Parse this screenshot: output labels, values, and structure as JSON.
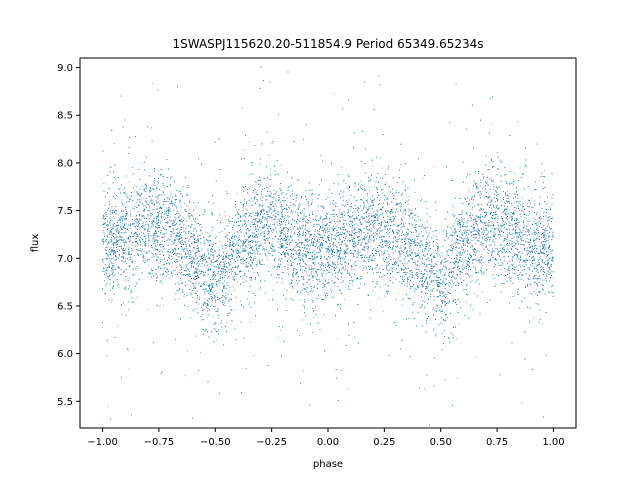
{
  "chart_data": {
    "type": "scatter",
    "title": "1SWASPJ115620.20-511854.9 Period 65349.65234s",
    "xlabel": "phase",
    "ylabel": "flux",
    "xlim": [
      -1.1,
      1.1
    ],
    "ylim": [
      5.22,
      9.1
    ],
    "xticks": [
      -1.0,
      -0.75,
      -0.5,
      -0.25,
      0.0,
      0.25,
      0.5,
      0.75,
      1.0
    ],
    "xtick_labels": [
      "−1.00",
      "−0.75",
      "−0.50",
      "−0.25",
      "0.00",
      "0.25",
      "0.50",
      "0.75",
      "1.00"
    ],
    "yticks": [
      5.5,
      6.0,
      6.5,
      7.0,
      7.5,
      8.0,
      8.5,
      9.0
    ],
    "ytick_labels": [
      "5.5",
      "6.0",
      "6.5",
      "7.0",
      "7.5",
      "8.0",
      "8.5",
      "9.0"
    ],
    "grid": false,
    "marker_color": "#1f77b4",
    "series": [
      {
        "profile_phase": [
          -1.0,
          -0.9,
          -0.8,
          -0.75,
          -0.7,
          -0.6,
          -0.55,
          -0.5,
          -0.45,
          -0.4,
          -0.3,
          -0.25,
          -0.2,
          -0.1,
          0.0,
          0.1,
          0.2,
          0.25,
          0.3,
          0.4,
          0.45,
          0.5,
          0.55,
          0.6,
          0.7,
          0.75,
          0.8,
          0.9,
          1.0
        ],
        "profile_flux": [
          7.1,
          7.25,
          7.35,
          7.35,
          7.3,
          7.05,
          6.85,
          6.7,
          6.9,
          7.15,
          7.35,
          7.35,
          7.25,
          7.1,
          7.05,
          7.2,
          7.3,
          7.32,
          7.25,
          7.0,
          6.85,
          6.7,
          6.85,
          7.1,
          7.35,
          7.35,
          7.3,
          7.15,
          7.1
        ],
        "scatter_sigma": 0.28,
        "n_points": 16000
      }
    ]
  }
}
